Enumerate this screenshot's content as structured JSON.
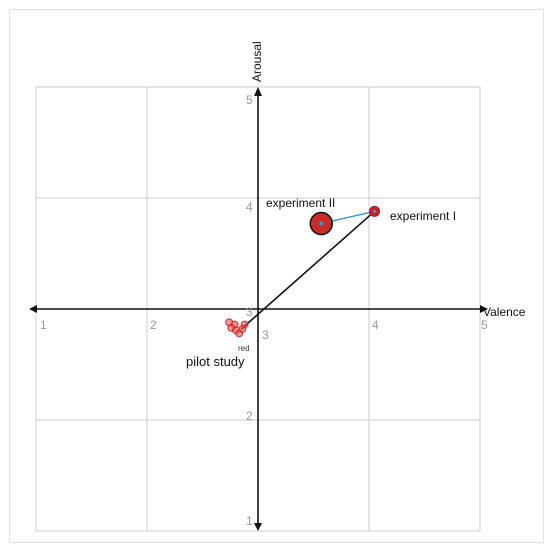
{
  "chart_data": {
    "type": "scatter",
    "xlabel": "Valence",
    "ylabel": "Arousal",
    "xlim": [
      1,
      5
    ],
    "ylim": [
      1,
      5
    ],
    "x_ticks": [
      "1",
      "2",
      "3",
      "4",
      "5"
    ],
    "y_ticks": [
      "1",
      "2",
      "3",
      "4",
      "5"
    ],
    "grid": true,
    "points": [
      {
        "label": "experiment I",
        "x": 4.05,
        "y": 3.88,
        "size": "small",
        "color": "#cc2222"
      },
      {
        "label": "experiment II",
        "x": 3.57,
        "y": 3.77,
        "size": "large",
        "color": "#cc2222"
      },
      {
        "label": "pilot study",
        "x": 2.85,
        "y": 2.82,
        "size": "cluster",
        "color": "#d93030",
        "sublabel": "red"
      }
    ],
    "connectors": [
      {
        "from": "pilot study",
        "to": "experiment I",
        "color": "#111111"
      },
      {
        "from": "experiment II",
        "to": "experiment I",
        "color": "#2f9bd6"
      }
    ],
    "cluster_points": [
      {
        "x": 2.74,
        "y": 2.88
      },
      {
        "x": 2.79,
        "y": 2.86
      },
      {
        "x": 2.88,
        "y": 2.86
      },
      {
        "x": 2.8,
        "y": 2.81
      },
      {
        "x": 2.86,
        "y": 2.82
      },
      {
        "x": 2.83,
        "y": 2.78
      },
      {
        "x": 2.76,
        "y": 2.83
      }
    ],
    "colors": {
      "grid": "#cccccc",
      "axis": "#111111",
      "frame": "#e2e2e2"
    }
  }
}
